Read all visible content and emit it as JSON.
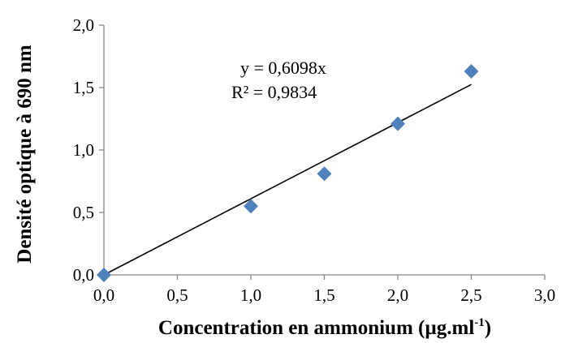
{
  "chart_data": {
    "type": "scatter",
    "x": [
      0.0,
      1.0,
      1.5,
      2.0,
      2.5
    ],
    "y": [
      0.0,
      0.55,
      0.81,
      1.21,
      1.63
    ],
    "xlabel_main": "Concentration en ammonium (µg.ml",
    "xlabel_sup": "-1",
    "xlabel_close": ")",
    "ylabel": "Densité optique à 690 nm",
    "xlim": [
      0.0,
      3.0
    ],
    "ylim": [
      0.0,
      2.0
    ],
    "xticks": [
      0.0,
      0.5,
      1.0,
      1.5,
      2.0,
      2.5,
      3.0
    ],
    "yticks": [
      0.0,
      0.5,
      1.0,
      1.5,
      2.0
    ],
    "xtick_labels": [
      "0,0",
      "0,5",
      "1,0",
      "1,5",
      "2,0",
      "2,5",
      "3,0"
    ],
    "ytick_labels": [
      "0,0",
      "0,5",
      "1,0",
      "1,5",
      "2,0"
    ],
    "trendline": {
      "slope": 0.6098,
      "x_range": [
        0.0,
        2.5
      ],
      "equation": "y = 0,6098x",
      "r_squared": "R² = 0,9834"
    },
    "grid": false,
    "marker": "diamond",
    "marker_color": "#4F81BD",
    "line_color": "#000000"
  }
}
